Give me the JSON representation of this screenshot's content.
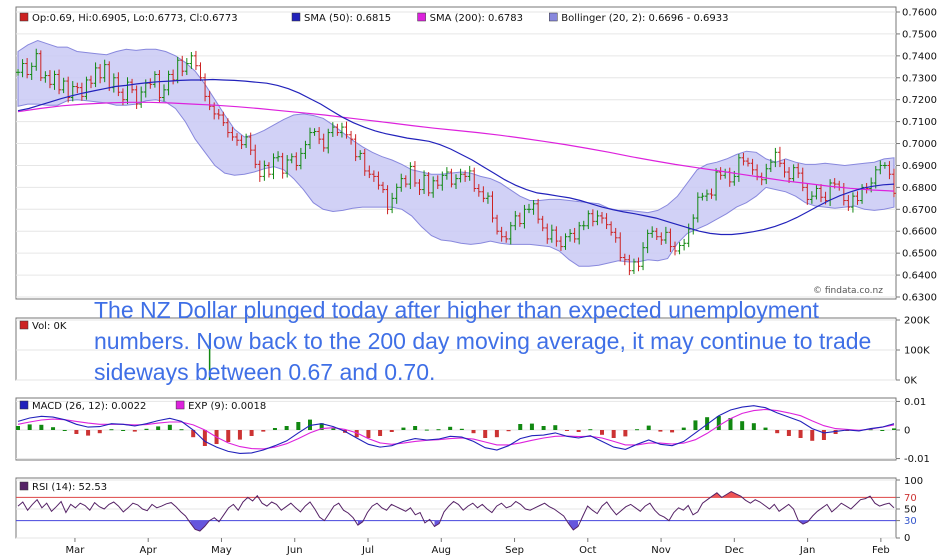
{
  "annotation": "The NZ Dollar plunged today after higher than expected unemployment numbers. Now back to the 200 day moving average, it may continue to trade sideways between 0.67 and 0.70.",
  "watermark": "© findata.co.nz",
  "chart_data": [
    {
      "id": "price",
      "type": "ohlc",
      "legend": [
        {
          "label": "Op:0.69, Hi:0.6905, Lo:0.6773, Cl:0.6773",
          "color": "#cc2222"
        },
        {
          "label": "SMA (50): 0.6815",
          "color": "#2222bb"
        },
        {
          "label": "SMA (200): 0.6783",
          "color": "#dd22dd"
        },
        {
          "label": "Bollinger (20, 2): 0.6696 - 0.6933",
          "color": "#8888dd"
        }
      ],
      "ylim": [
        0.63,
        0.76
      ],
      "yticks": [
        "0.6300",
        "0.6400",
        "0.6500",
        "0.6600",
        "0.6700",
        "0.6800",
        "0.6900",
        "0.7000",
        "0.7100",
        "0.7200",
        "0.7300",
        "0.7400",
        "0.7500",
        "0.7600"
      ],
      "close": [
        0.7325,
        0.7365,
        0.7315,
        0.7352,
        0.741,
        0.73,
        0.731,
        0.727,
        0.7315,
        0.7245,
        0.7285,
        0.721,
        0.726,
        0.7255,
        0.7215,
        0.729,
        0.7275,
        0.7345,
        0.73,
        0.736,
        0.7255,
        0.73,
        0.7234,
        0.72,
        0.728,
        0.7245,
        0.718,
        0.7235,
        0.7275,
        0.727,
        0.7315,
        0.721,
        0.7245,
        0.7315,
        0.729,
        0.738,
        0.733,
        0.7365,
        0.74,
        0.7355,
        0.73,
        0.7215,
        0.717,
        0.7135,
        0.713,
        0.7095,
        0.705,
        0.703,
        0.7015,
        0.6995,
        0.703,
        0.697,
        0.6905,
        0.685,
        0.69,
        0.686,
        0.6935,
        0.694,
        0.6865,
        0.6925,
        0.694,
        0.69,
        0.6955,
        0.6995,
        0.705,
        0.7055,
        0.702,
        0.698,
        0.705,
        0.7075,
        0.705,
        0.7075,
        0.704,
        0.702,
        0.694,
        0.6955,
        0.6875,
        0.686,
        0.685,
        0.681,
        0.679,
        0.67,
        0.675,
        0.68,
        0.684,
        0.6815,
        0.6895,
        0.682,
        0.679,
        0.6855,
        0.6775,
        0.683,
        0.681,
        0.6855,
        0.687,
        0.6815,
        0.684,
        0.686,
        0.685,
        0.6875,
        0.6795,
        0.678,
        0.675,
        0.676,
        0.666,
        0.66,
        0.6575,
        0.6565,
        0.6625,
        0.667,
        0.6635,
        0.67,
        0.67,
        0.6725,
        0.6655,
        0.6615,
        0.6565,
        0.6605,
        0.6555,
        0.653,
        0.6575,
        0.659,
        0.6565,
        0.6625,
        0.6625,
        0.668,
        0.6645,
        0.667,
        0.666,
        0.663,
        0.6595,
        0.657,
        0.648,
        0.647,
        0.642,
        0.646,
        0.644,
        0.6525,
        0.659,
        0.66,
        0.6575,
        0.656,
        0.6595,
        0.653,
        0.651,
        0.6535,
        0.6545,
        0.661,
        0.666,
        0.6755,
        0.676,
        0.677,
        0.6765,
        0.687,
        0.6855,
        0.687,
        0.6825,
        0.685,
        0.6935,
        0.692,
        0.691,
        0.688,
        0.685,
        0.6835,
        0.6885,
        0.6915,
        0.696,
        0.691,
        0.687,
        0.684,
        0.689,
        0.6865,
        0.68,
        0.6745,
        0.676,
        0.6795,
        0.6755,
        0.674,
        0.682,
        0.6815,
        0.68,
        0.674,
        0.671,
        0.676,
        0.674,
        0.68,
        0.6795,
        0.682,
        0.688,
        0.69,
        0.69,
        0.686,
        0.6773
      ],
      "sma50": [
        0.715,
        0.716,
        0.7175,
        0.719,
        0.7205,
        0.7218,
        0.723,
        0.724,
        0.725,
        0.726,
        0.7265,
        0.7272,
        0.7278,
        0.7282,
        0.7285,
        0.7288,
        0.729,
        0.729,
        0.7292,
        0.729,
        0.7288,
        0.7285,
        0.728,
        0.7275,
        0.7265,
        0.725,
        0.723,
        0.7205,
        0.718,
        0.715,
        0.712,
        0.7095,
        0.7075,
        0.7058,
        0.7045,
        0.7035,
        0.7025,
        0.7018,
        0.701,
        0.6995,
        0.6975,
        0.695,
        0.6925,
        0.6895,
        0.6865,
        0.6835,
        0.681,
        0.679,
        0.6775,
        0.6768,
        0.676,
        0.6752,
        0.674,
        0.6725,
        0.671,
        0.6698,
        0.6688,
        0.668,
        0.667,
        0.666,
        0.6645,
        0.663,
        0.6615,
        0.66,
        0.659,
        0.6585,
        0.6585,
        0.659,
        0.6598,
        0.6608,
        0.6622,
        0.664,
        0.6662,
        0.6688,
        0.6715,
        0.674,
        0.6762,
        0.678,
        0.6795,
        0.6805,
        0.6812,
        0.6815
      ],
      "sma200": [
        0.7145,
        0.716,
        0.7172,
        0.718,
        0.7185,
        0.7188,
        0.7188,
        0.7185,
        0.718,
        0.7175,
        0.7168,
        0.716,
        0.715,
        0.714,
        0.713,
        0.7118,
        0.7106,
        0.7094,
        0.7082,
        0.707,
        0.706,
        0.705,
        0.7038,
        0.7025,
        0.701,
        0.6995,
        0.6978,
        0.696,
        0.694,
        0.6922,
        0.6905,
        0.689,
        0.6875,
        0.686,
        0.6845,
        0.683,
        0.6818,
        0.6806,
        0.6796,
        0.6788,
        0.6783
      ],
      "bb_upper": [
        0.742,
        0.745,
        0.747,
        0.7455,
        0.744,
        0.744,
        0.742,
        0.7415,
        0.741,
        0.7405,
        0.742,
        0.743,
        0.7425,
        0.743,
        0.743,
        0.742,
        0.74,
        0.737,
        0.733,
        0.727,
        0.72,
        0.713,
        0.7065,
        0.703,
        0.704,
        0.706,
        0.7085,
        0.711,
        0.713,
        0.7135,
        0.7128,
        0.7115,
        0.7085,
        0.705,
        0.7015,
        0.6985,
        0.696,
        0.694,
        0.6925,
        0.6905,
        0.688,
        0.687,
        0.686,
        0.686,
        0.6865,
        0.687,
        0.6865,
        0.685,
        0.684,
        0.682,
        0.679,
        0.676,
        0.674,
        0.674,
        0.6745,
        0.6745,
        0.674,
        0.6735,
        0.673,
        0.6725,
        0.6705,
        0.6695,
        0.6695,
        0.669,
        0.6685,
        0.6695,
        0.672,
        0.676,
        0.682,
        0.688,
        0.6905,
        0.6915,
        0.693,
        0.695,
        0.6965,
        0.696,
        0.693,
        0.6915,
        0.693,
        0.6915,
        0.6905,
        0.6905,
        0.691,
        0.6905,
        0.69,
        0.6905,
        0.691,
        0.6915,
        0.693,
        0.6935
      ],
      "bb_lower": [
        0.717,
        0.718,
        0.718,
        0.7175,
        0.7175,
        0.7195,
        0.72,
        0.7195,
        0.719,
        0.7185,
        0.7175,
        0.7175,
        0.718,
        0.7195,
        0.72,
        0.719,
        0.716,
        0.71,
        0.702,
        0.696,
        0.69,
        0.6865,
        0.6855,
        0.686,
        0.687,
        0.6885,
        0.6895,
        0.688,
        0.684,
        0.679,
        0.673,
        0.67,
        0.669,
        0.6695,
        0.6705,
        0.671,
        0.671,
        0.671,
        0.671,
        0.67,
        0.667,
        0.662,
        0.658,
        0.656,
        0.6555,
        0.6545,
        0.654,
        0.6545,
        0.6555,
        0.6545,
        0.654,
        0.654,
        0.654,
        0.6535,
        0.653,
        0.651,
        0.647,
        0.644,
        0.644,
        0.6445,
        0.6455,
        0.6465,
        0.646,
        0.646,
        0.647,
        0.6465,
        0.6475,
        0.6545,
        0.659,
        0.661,
        0.663,
        0.6655,
        0.668,
        0.671,
        0.673,
        0.676,
        0.68,
        0.679,
        0.678,
        0.676,
        0.673,
        0.6715,
        0.671,
        0.6705,
        0.671,
        0.6715,
        0.67,
        0.6695,
        0.67,
        0.671
      ]
    },
    {
      "id": "volume",
      "type": "bar",
      "legend": [
        {
          "label": "Vol: 0K",
          "color": "#cc2222"
        }
      ],
      "ylim": [
        0,
        200
      ],
      "yticks": [
        "0K",
        "100K",
        "200K"
      ],
      "values": [
        {
          "x_index": 42,
          "value": 150
        }
      ]
    },
    {
      "id": "macd",
      "type": "line",
      "legend": [
        {
          "label": "MACD (26, 12): 0.0022",
          "color": "#2222bb"
        },
        {
          "label": "EXP (9): 0.0018",
          "color": "#dd22dd"
        }
      ],
      "ylim": [
        -0.0105,
        0.0105
      ],
      "yticks": [
        "-0.01",
        "0",
        "0.01"
      ],
      "macd": [
        0.003,
        0.0042,
        0.0048,
        0.0045,
        0.0036,
        0.002,
        0.001,
        0.0012,
        0.0022,
        0.002,
        0.0014,
        0.0022,
        0.0033,
        0.0041,
        0.003,
        0.0,
        -0.004,
        -0.006,
        -0.0075,
        -0.0082,
        -0.008,
        -0.007,
        -0.0055,
        -0.0038,
        -0.001,
        0.0016,
        0.0022,
        0.0012,
        -0.0005,
        -0.0028,
        -0.005,
        -0.006,
        -0.0055,
        -0.004,
        -0.003,
        -0.0035,
        -0.0032,
        -0.0022,
        -0.0025,
        -0.004,
        -0.0062,
        -0.007,
        -0.0055,
        -0.003,
        -0.002,
        -0.0018,
        -0.001,
        -0.0022,
        -0.0028,
        -0.002,
        -0.004,
        -0.006,
        -0.0068,
        -0.005,
        -0.0035,
        -0.005,
        -0.0055,
        -0.004,
        -0.001,
        0.002,
        0.005,
        0.007,
        0.008,
        0.0085,
        0.0078,
        0.006,
        0.0045,
        0.003,
        0.0005,
        -0.001,
        -0.0005,
        0.0,
        -0.0003,
        0.0005,
        0.001,
        0.0022
      ],
      "signal": [
        0.002,
        0.0028,
        0.0035,
        0.0038,
        0.0036,
        0.003,
        0.0024,
        0.002,
        0.002,
        0.002,
        0.0018,
        0.0019,
        0.0024,
        0.0028,
        0.0028,
        0.0018,
        0.0,
        -0.0025,
        -0.0045,
        -0.0058,
        -0.0065,
        -0.0066,
        -0.006,
        -0.0048,
        -0.003,
        -0.001,
        0.0005,
        0.0008,
        0.0002,
        -0.001,
        -0.003,
        -0.0045,
        -0.005,
        -0.0046,
        -0.004,
        -0.0036,
        -0.0034,
        -0.003,
        -0.0028,
        -0.0032,
        -0.0042,
        -0.0052,
        -0.0052,
        -0.0045,
        -0.0036,
        -0.0028,
        -0.0022,
        -0.0021,
        -0.0023,
        -0.0022,
        -0.0028,
        -0.004,
        -0.0052,
        -0.0052,
        -0.0046,
        -0.0046,
        -0.0049,
        -0.0046,
        -0.0034,
        -0.0012,
        0.0015,
        0.004,
        0.0058,
        0.0068,
        0.0072,
        0.0068,
        0.006,
        0.005,
        0.0032,
        0.0015,
        0.0005,
        0.0002,
        -0.0001,
        0.0003,
        0.001,
        0.0018
      ]
    },
    {
      "id": "rsi",
      "type": "line",
      "legend": [
        {
          "label": "RSI (14): 52.53",
          "color": "#552266"
        }
      ],
      "ylim": [
        0,
        100
      ],
      "yticks": [
        "0",
        "30",
        "50",
        "70",
        "100"
      ],
      "overbought": 70,
      "oversold": 30,
      "values": [
        55,
        62,
        48,
        58,
        66,
        52,
        60,
        46,
        54,
        63,
        44,
        58,
        52,
        60,
        56,
        48,
        61,
        54,
        50,
        58,
        62,
        55,
        45,
        52,
        60,
        57,
        50,
        47,
        58,
        52,
        55,
        59,
        61,
        54,
        45,
        38,
        26,
        15,
        12,
        20,
        30,
        35,
        28,
        40,
        52,
        58,
        48,
        62,
        70,
        64,
        73,
        60,
        55,
        62,
        58,
        48,
        54,
        60,
        52,
        45,
        55,
        62,
        50,
        36,
        30,
        42,
        55,
        60,
        48,
        43,
        35,
        22,
        28,
        44,
        55,
        60,
        52,
        48,
        58,
        54,
        50,
        46,
        52,
        40,
        44,
        26,
        32,
        20,
        25,
        45,
        55,
        63,
        58,
        48,
        55,
        60,
        52,
        58,
        50,
        44,
        55,
        60,
        52,
        55,
        63,
        58,
        50,
        48,
        52,
        56,
        60,
        54,
        50,
        44,
        38,
        25,
        14,
        20,
        38,
        55,
        48,
        42,
        55,
        62,
        50,
        40,
        47,
        54,
        58,
        52,
        46,
        55,
        60,
        48,
        40,
        36,
        30,
        44,
        52,
        48,
        56,
        40,
        45,
        60,
        66,
        72,
        78,
        70,
        75,
        80,
        76,
        72,
        65,
        60,
        66,
        62,
        56,
        50,
        58,
        46,
        52,
        58,
        50,
        30,
        24,
        28,
        38,
        46,
        52,
        58,
        45,
        52,
        60,
        55,
        50,
        58,
        66,
        68,
        72,
        60,
        55,
        58,
        60,
        52
      ]
    }
  ],
  "x_axis": {
    "months": [
      "Mar",
      "Apr",
      "May",
      "Jun",
      "Jul",
      "Aug",
      "Sep",
      "Oct",
      "Nov",
      "Dec",
      "Jan",
      "Feb"
    ]
  }
}
